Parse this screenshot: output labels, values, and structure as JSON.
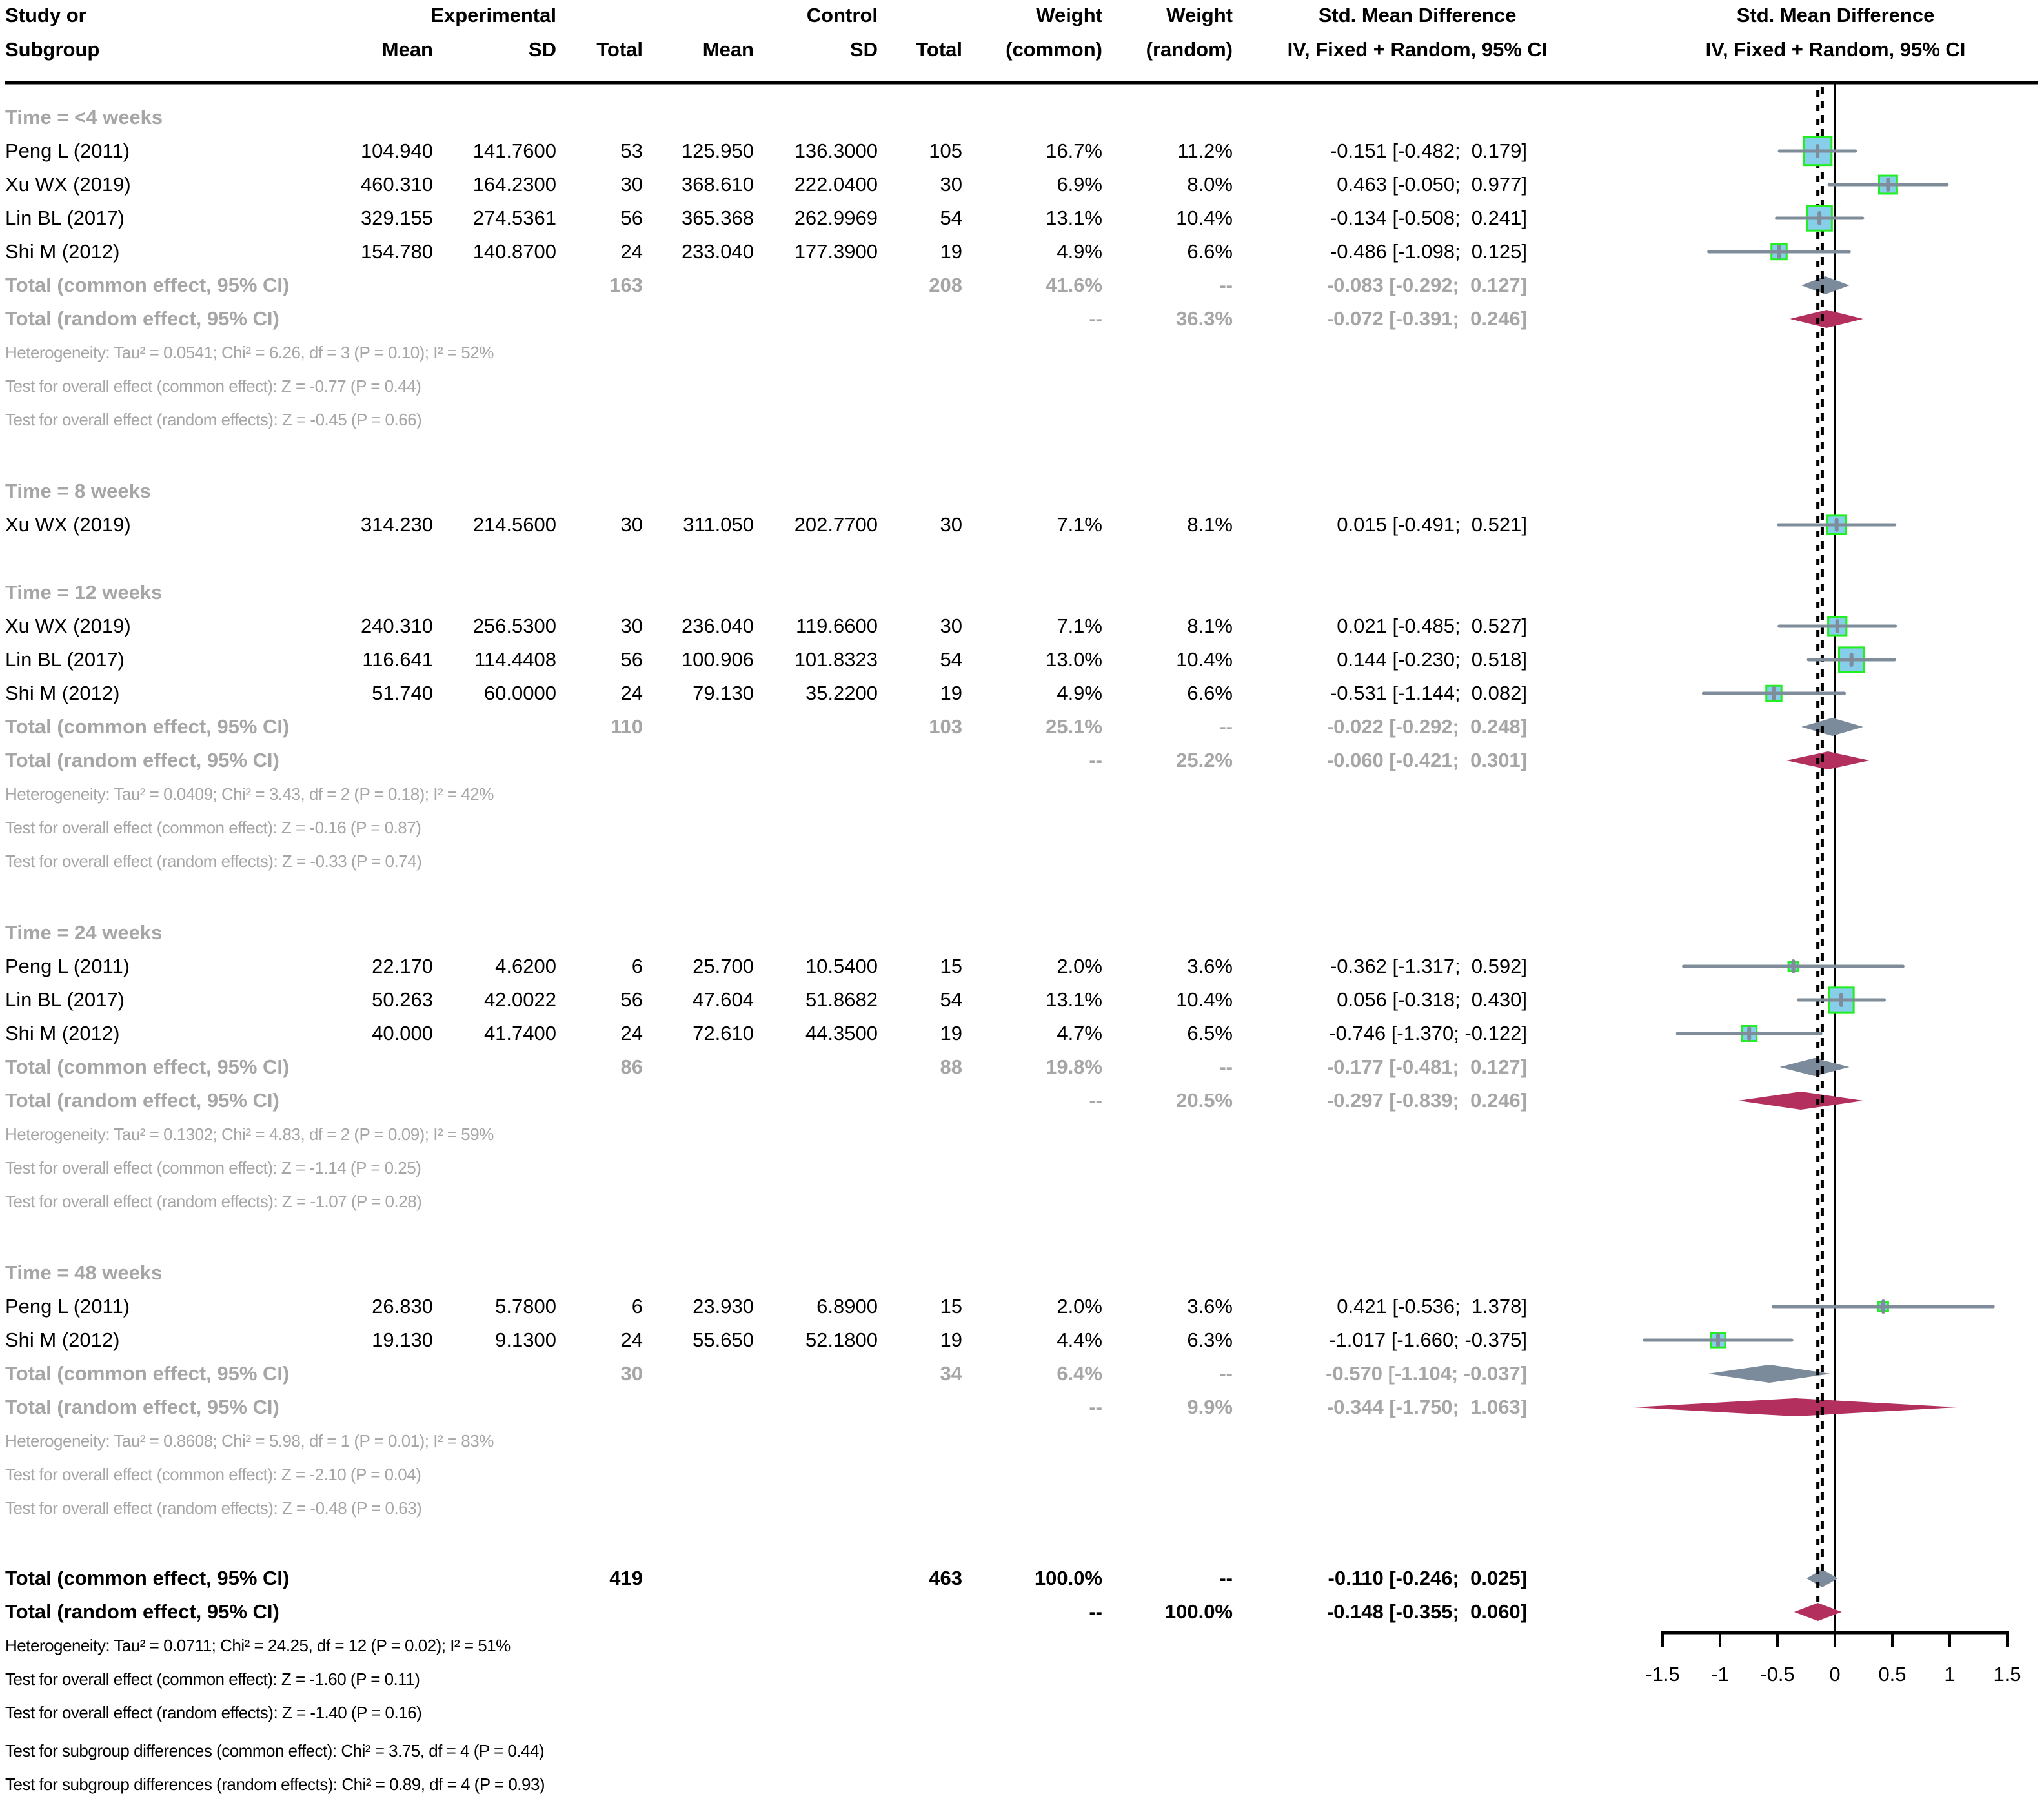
{
  "table": {
    "header": {
      "study": [
        "Study or",
        "Subgroup"
      ],
      "experimental": "Experimental",
      "control": "Control",
      "mean": "Mean",
      "sd": "SD",
      "total": "Total",
      "weight_common": [
        "Weight",
        "(common)"
      ],
      "weight_random": [
        "Weight",
        "(random)"
      ],
      "smd": [
        "Std. Mean Difference",
        "IV, Fixed + Random, 95% CI"
      ]
    },
    "rows": [
      {
        "type": "group",
        "label": "Time = <4 weeks"
      },
      {
        "type": "study",
        "label": "Peng L (2011)",
        "e_mean": "104.940",
        "e_sd": "141.7600",
        "e_total": "53",
        "c_mean": "125.950",
        "c_sd": "136.3000",
        "c_total": "105",
        "w_common": "16.7%",
        "w_random": "11.2%",
        "smd": "-0.151 [-0.482;  0.179]"
      },
      {
        "type": "study",
        "label": "Xu WX (2019)",
        "e_mean": "460.310",
        "e_sd": "164.2300",
        "e_total": "30",
        "c_mean": "368.610",
        "c_sd": "222.0400",
        "c_total": "30",
        "w_common": "6.9%",
        "w_random": "8.0%",
        "smd": "0.463 [-0.050;  0.977]"
      },
      {
        "type": "study",
        "label": "Lin BL (2017)",
        "e_mean": "329.155",
        "e_sd": "274.5361",
        "e_total": "56",
        "c_mean": "365.368",
        "c_sd": "262.9969",
        "c_total": "54",
        "w_common": "13.1%",
        "w_random": "10.4%",
        "smd": "-0.134 [-0.508;  0.241]"
      },
      {
        "type": "study",
        "label": "Shi M (2012)",
        "e_mean": "154.780",
        "e_sd": "140.8700",
        "e_total": "24",
        "c_mean": "233.040",
        "c_sd": "177.3900",
        "c_total": "19",
        "w_common": "4.9%",
        "w_random": "6.6%",
        "smd": "-0.486 [-1.098;  0.125]"
      },
      {
        "type": "subtotal_common",
        "label": "Total (common effect, 95% CI)",
        "e_total": "163",
        "c_total": "208",
        "w_common": "41.6%",
        "w_random": "--",
        "smd": "-0.083 [-0.292;  0.127]"
      },
      {
        "type": "subtotal_random",
        "label": "Total (random effect, 95% CI)",
        "w_common": "--",
        "w_random": "36.3%",
        "smd": "-0.072 [-0.391;  0.246]"
      },
      {
        "type": "stat",
        "label": "Heterogeneity: Tau² = 0.0541; Chi² = 6.26, df = 3 (P = 0.10); I² = 52%"
      },
      {
        "type": "stat",
        "label": "Test for overall effect (common effect): Z = -0.77 (P = 0.44)"
      },
      {
        "type": "stat",
        "label": "Test for overall effect (random effects): Z = -0.45 (P = 0.66)"
      },
      {
        "type": "group",
        "label": "Time = 8 weeks"
      },
      {
        "type": "study",
        "label": "Xu WX (2019)",
        "e_mean": "314.230",
        "e_sd": "214.5600",
        "e_total": "30",
        "c_mean": "311.050",
        "c_sd": "202.7700",
        "c_total": "30",
        "w_common": "7.1%",
        "w_random": "8.1%",
        "smd": "0.015 [-0.491;  0.521]"
      },
      {
        "type": "group",
        "label": "Time = 12 weeks"
      },
      {
        "type": "study",
        "label": "Xu WX (2019)",
        "e_mean": "240.310",
        "e_sd": "256.5300",
        "e_total": "30",
        "c_mean": "236.040",
        "c_sd": "119.6600",
        "c_total": "30",
        "w_common": "7.1%",
        "w_random": "8.1%",
        "smd": "0.021 [-0.485;  0.527]"
      },
      {
        "type": "study",
        "label": "Lin BL (2017)",
        "e_mean": "116.641",
        "e_sd": "114.4408",
        "e_total": "56",
        "c_mean": "100.906",
        "c_sd": "101.8323",
        "c_total": "54",
        "w_common": "13.0%",
        "w_random": "10.4%",
        "smd": "0.144 [-0.230;  0.518]"
      },
      {
        "type": "study",
        "label": "Shi M (2012)",
        "e_mean": "51.740",
        "e_sd": "60.0000",
        "e_total": "24",
        "c_mean": "79.130",
        "c_sd": "35.2200",
        "c_total": "19",
        "w_common": "4.9%",
        "w_random": "6.6%",
        "smd": "-0.531 [-1.144;  0.082]"
      },
      {
        "type": "subtotal_common",
        "label": "Total (common effect, 95% CI)",
        "e_total": "110",
        "c_total": "103",
        "w_common": "25.1%",
        "w_random": "--",
        "smd": "-0.022 [-0.292;  0.248]"
      },
      {
        "type": "subtotal_random",
        "label": "Total (random effect, 95% CI)",
        "w_common": "--",
        "w_random": "25.2%",
        "smd": "-0.060 [-0.421;  0.301]"
      },
      {
        "type": "stat",
        "label": "Heterogeneity: Tau² = 0.0409; Chi² = 3.43, df = 2 (P = 0.18); I² = 42%"
      },
      {
        "type": "stat",
        "label": "Test for overall effect (common effect): Z = -0.16 (P = 0.87)"
      },
      {
        "type": "stat",
        "label": "Test for overall effect (random effects): Z = -0.33 (P = 0.74)"
      },
      {
        "type": "group",
        "label": "Time = 24 weeks"
      },
      {
        "type": "study",
        "label": "Peng L (2011)",
        "e_mean": "22.170",
        "e_sd": "4.6200",
        "e_total": "6",
        "c_mean": "25.700",
        "c_sd": "10.5400",
        "c_total": "15",
        "w_common": "2.0%",
        "w_random": "3.6%",
        "smd": "-0.362 [-1.317;  0.592]"
      },
      {
        "type": "study",
        "label": "Lin BL (2017)",
        "e_mean": "50.263",
        "e_sd": "42.0022",
        "e_total": "56",
        "c_mean": "47.604",
        "c_sd": "51.8682",
        "c_total": "54",
        "w_common": "13.1%",
        "w_random": "10.4%",
        "smd": "0.056 [-0.318;  0.430]"
      },
      {
        "type": "study",
        "label": "Shi M (2012)",
        "e_mean": "40.000",
        "e_sd": "41.7400",
        "e_total": "24",
        "c_mean": "72.610",
        "c_sd": "44.3500",
        "c_total": "19",
        "w_common": "4.7%",
        "w_random": "6.5%",
        "smd": "-0.746 [-1.370; -0.122]"
      },
      {
        "type": "subtotal_common",
        "label": "Total (common effect, 95% CI)",
        "e_total": "86",
        "c_total": "88",
        "w_common": "19.8%",
        "w_random": "--",
        "smd": "-0.177 [-0.481;  0.127]"
      },
      {
        "type": "subtotal_random",
        "label": "Total (random effect, 95% CI)",
        "w_common": "--",
        "w_random": "20.5%",
        "smd": "-0.297 [-0.839;  0.246]"
      },
      {
        "type": "stat",
        "label": "Heterogeneity: Tau² = 0.1302; Chi² = 4.83, df = 2 (P = 0.09); I² = 59%"
      },
      {
        "type": "stat",
        "label": "Test for overall effect (common effect): Z = -1.14 (P = 0.25)"
      },
      {
        "type": "stat",
        "label": "Test for overall effect (random effects): Z = -1.07 (P = 0.28)"
      },
      {
        "type": "group",
        "label": "Time = 48 weeks"
      },
      {
        "type": "study",
        "label": "Peng L (2011)",
        "e_mean": "26.830",
        "e_sd": "5.7800",
        "e_total": "6",
        "c_mean": "23.930",
        "c_sd": "6.8900",
        "c_total": "15",
        "w_common": "2.0%",
        "w_random": "3.6%",
        "smd": "0.421 [-0.536;  1.378]"
      },
      {
        "type": "study",
        "label": "Shi M (2012)",
        "e_mean": "19.130",
        "e_sd": "9.1300",
        "e_total": "24",
        "c_mean": "55.650",
        "c_sd": "52.1800",
        "c_total": "19",
        "w_common": "4.4%",
        "w_random": "6.3%",
        "smd": "-1.017 [-1.660; -0.375]"
      },
      {
        "type": "subtotal_common",
        "label": "Total (common effect, 95% CI)",
        "e_total": "30",
        "c_total": "34",
        "w_common": "6.4%",
        "w_random": "--",
        "smd": "-0.570 [-1.104; -0.037]"
      },
      {
        "type": "subtotal_random",
        "label": "Total (random effect, 95% CI)",
        "w_common": "--",
        "w_random": "9.9%",
        "smd": "-0.344 [-1.750;  1.063]"
      },
      {
        "type": "stat",
        "label": "Heterogeneity: Tau² = 0.8608; Chi² = 5.98, df = 1 (P = 0.01); I² = 83%"
      },
      {
        "type": "stat",
        "label": "Test for overall effect (common effect): Z = -2.10 (P = 0.04)"
      },
      {
        "type": "stat",
        "label": "Test for overall effect (random effects): Z = -0.48 (P = 0.63)"
      },
      {
        "type": "overall_common",
        "label": "Total (common effect, 95% CI)",
        "e_total": "419",
        "c_total": "463",
        "w_common": "100.0%",
        "w_random": "--",
        "smd": "-0.110 [-0.246;  0.025]"
      },
      {
        "type": "overall_random",
        "label": "Total (random effect, 95% CI)",
        "w_common": "--",
        "w_random": "100.0%",
        "smd": "-0.148 [-0.355;  0.060]"
      },
      {
        "type": "overall_stat",
        "label": "Heterogeneity: Tau² = 0.0711; Chi² = 24.25, df = 12 (P = 0.02); I² = 51%"
      },
      {
        "type": "overall_stat",
        "label": "Test for overall effect (common effect): Z = -1.60 (P = 0.11)"
      },
      {
        "type": "overall_stat",
        "label": "Test for overall effect (random effects): Z = -1.40 (P = 0.16)"
      },
      {
        "type": "subgroup_test",
        "label": "Test for subgroup differences (common effect): Chi² = 3.75, df = 4 (P = 0.44)"
      },
      {
        "type": "subgroup_test",
        "label": "Test for subgroup differences (random effects): Chi² = 0.89, df = 4 (P = 0.93)"
      }
    ]
  },
  "chart_data": {
    "type": "forest",
    "title": [
      "Std. Mean Difference",
      "IV, Fixed + Random, 95% CI"
    ],
    "xlim": [
      -1.5,
      1.5
    ],
    "x_ticks": [
      -1.5,
      -1,
      -0.5,
      0,
      0.5,
      1,
      1.5
    ],
    "x_tick_labels": [
      "-1.5",
      "-1",
      "-0.5",
      "0",
      "0.5",
      "1",
      "1.5"
    ],
    "null_value": 0,
    "overall_common_smd": -0.11,
    "overall_random_smd": -0.148,
    "studies": [
      {
        "smd": -0.151,
        "lower": -0.482,
        "upper": 0.179,
        "weight_common": 16.7,
        "weight_random": 11.2
      },
      {
        "smd": 0.463,
        "lower": -0.05,
        "upper": 0.977,
        "weight_common": 6.9,
        "weight_random": 8.0
      },
      {
        "smd": -0.134,
        "lower": -0.508,
        "upper": 0.241,
        "weight_common": 13.1,
        "weight_random": 10.4
      },
      {
        "smd": -0.486,
        "lower": -1.098,
        "upper": 0.125,
        "weight_common": 4.9,
        "weight_random": 6.6
      },
      {
        "smd": 0.015,
        "lower": -0.491,
        "upper": 0.521,
        "weight_common": 7.1,
        "weight_random": 8.1
      },
      {
        "smd": 0.021,
        "lower": -0.485,
        "upper": 0.527,
        "weight_common": 7.1,
        "weight_random": 8.1
      },
      {
        "smd": 0.144,
        "lower": -0.23,
        "upper": 0.518,
        "weight_common": 13.0,
        "weight_random": 10.4
      },
      {
        "smd": -0.531,
        "lower": -1.144,
        "upper": 0.082,
        "weight_common": 4.9,
        "weight_random": 6.6
      },
      {
        "smd": -0.362,
        "lower": -1.317,
        "upper": 0.592,
        "weight_common": 2.0,
        "weight_random": 3.6
      },
      {
        "smd": 0.056,
        "lower": -0.318,
        "upper": 0.43,
        "weight_common": 13.1,
        "weight_random": 10.4
      },
      {
        "smd": -0.746,
        "lower": -1.37,
        "upper": -0.122,
        "weight_common": 4.7,
        "weight_random": 6.5
      },
      {
        "smd": 0.421,
        "lower": -0.536,
        "upper": 1.378,
        "weight_common": 2.0,
        "weight_random": 3.6
      },
      {
        "smd": -1.017,
        "lower": -1.66,
        "upper": -0.375,
        "weight_common": 4.4,
        "weight_random": 6.3
      }
    ],
    "pooled": [
      {
        "smd": -0.083,
        "lower": -0.292,
        "upper": 0.127
      },
      {
        "smd": -0.072,
        "lower": -0.391,
        "upper": 0.246
      },
      {
        "smd": -0.022,
        "lower": -0.292,
        "upper": 0.248
      },
      {
        "smd": -0.06,
        "lower": -0.421,
        "upper": 0.301
      },
      {
        "smd": -0.177,
        "lower": -0.481,
        "upper": 0.127
      },
      {
        "smd": -0.297,
        "lower": -0.839,
        "upper": 0.246
      },
      {
        "smd": -0.57,
        "lower": -1.104,
        "upper": -0.037
      },
      {
        "smd": -0.344,
        "lower": -1.75,
        "upper": 1.063
      },
      {
        "smd": -0.11,
        "lower": -0.246,
        "upper": 0.025
      },
      {
        "smd": -0.148,
        "lower": -0.355,
        "upper": 0.06
      }
    ]
  },
  "colors": {
    "square_fill": "#87ceeb",
    "square_border": "#22ee22",
    "ci_line": "#7f8c9a",
    "diamond_common": "#7b8b9b",
    "diamond_random": "#b22f5e",
    "muted_text": "#a6a6a6"
  }
}
